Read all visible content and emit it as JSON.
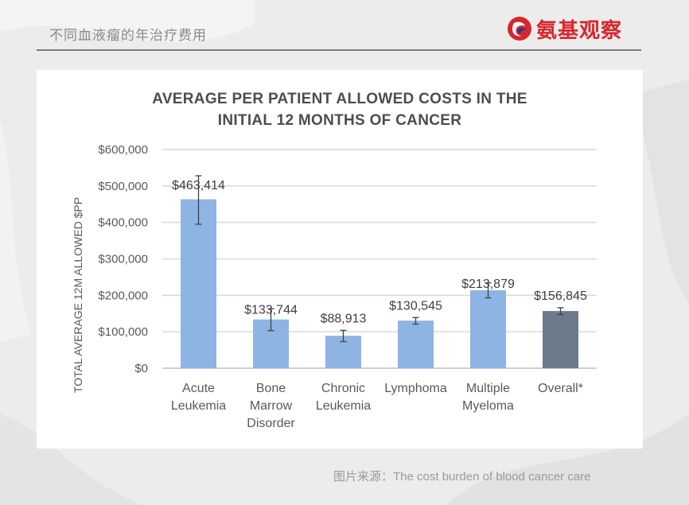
{
  "header": {
    "title": "不同血液瘤的年治疗费用",
    "brand_name": "氨基观察",
    "brand_color": "#d8262e"
  },
  "source": {
    "prefix": "图片来源：",
    "text": "The cost burden of blood cancer care"
  },
  "chart_data": {
    "type": "bar",
    "title_lines": [
      "AVERAGE PER PATIENT ALLOWED COSTS IN THE",
      "INITIAL 12 MONTHS OF CANCER"
    ],
    "ylabel": "TOTAL AVERAGE 12M ALLOWED $PP",
    "xlabel": "",
    "ylim": [
      0,
      600000
    ],
    "yticks": [
      0,
      100000,
      200000,
      300000,
      400000,
      500000,
      600000
    ],
    "ytick_labels": [
      "$0",
      "$100,000",
      "$200,000",
      "$300,000",
      "$400,000",
      "$500,000",
      "$600,000"
    ],
    "grid": true,
    "categories": [
      [
        "Acute",
        "Leukemia"
      ],
      [
        "Bone",
        "Marrow",
        "Disorder"
      ],
      [
        "Chronic",
        "Leukemia"
      ],
      [
        "Lymphoma"
      ],
      [
        "Multiple",
        "Myeloma"
      ],
      [
        "Overall*"
      ]
    ],
    "values": [
      463414,
      133744,
      88913,
      130545,
      213879,
      156845
    ],
    "value_labels": [
      "$463,414",
      "$133,744",
      "$88,913",
      "$130,545",
      "$213,879",
      "$156,845"
    ],
    "error_low": [
      395000,
      103000,
      73000,
      121000,
      193000,
      147000
    ],
    "error_high": [
      528000,
      163000,
      104000,
      139000,
      234000,
      166000
    ],
    "colors": [
      "#8db4e2",
      "#8db4e2",
      "#8db4e2",
      "#8db4e2",
      "#8db4e2",
      "#6d7a8c"
    ]
  }
}
